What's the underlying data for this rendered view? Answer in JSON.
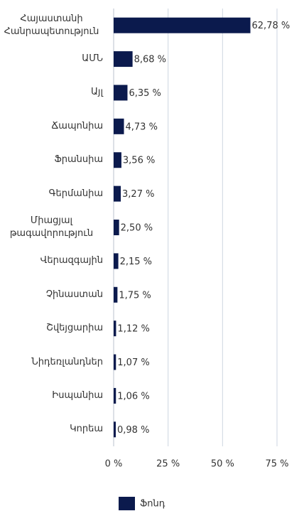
{
  "chart_data": {
    "type": "bar",
    "orientation": "horizontal",
    "categories": [
      "Հայաստանի Հանրապետություն",
      "ԱՄՆ",
      "Այլ",
      "Ճապոնիա",
      "Ֆրանսիա",
      "Գերմանիա",
      "Միացյալ թագավորություն",
      "Վերազգային",
      "Չինաստան",
      "Շվեյցարիա",
      "Նիդեռլանդներ",
      "Իսպանիա",
      "Կորեա"
    ],
    "series": [
      {
        "name": "Ֆոնդ",
        "color": "#0b1a4d",
        "values": [
          62.78,
          8.68,
          6.35,
          4.73,
          3.56,
          3.27,
          2.5,
          2.15,
          1.75,
          1.12,
          1.07,
          1.06,
          0.98
        ],
        "value_labels": [
          "62,78 %",
          "8,68 %",
          "6,35 %",
          "4,73 %",
          "3,56 %",
          "3,27 %",
          "2,50 %",
          "2,15 %",
          "1,75 %",
          "1,12 %",
          "1,07 %",
          "1,06 %",
          "0,98 %"
        ]
      }
    ],
    "xlim": [
      0,
      75
    ],
    "xticks": [
      {
        "value": 0,
        "label": "0 %"
      },
      {
        "value": 25,
        "label": "25 %"
      },
      {
        "value": 50,
        "label": "50 %"
      },
      {
        "value": 75,
        "label": "75 %"
      }
    ],
    "grid": true,
    "legend": "bottom"
  }
}
